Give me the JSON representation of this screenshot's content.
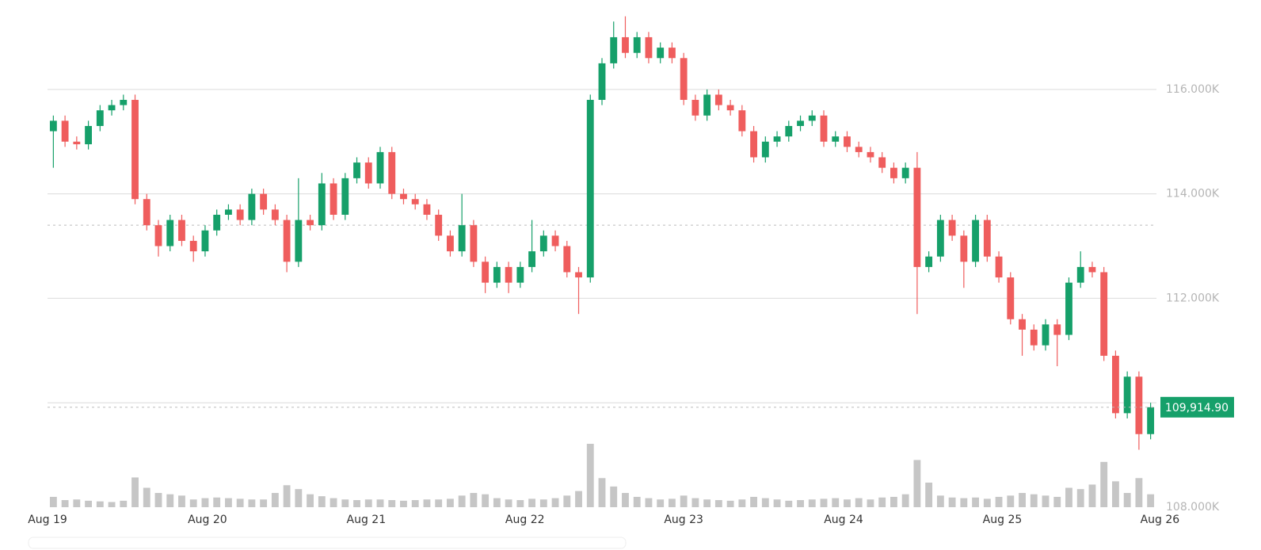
{
  "chart_data": {
    "type": "candlestick",
    "x": [
      0,
      1,
      2,
      3,
      4,
      5,
      6,
      7,
      8,
      9,
      10,
      11,
      12,
      13,
      14,
      15,
      16,
      17,
      18,
      19,
      20,
      21,
      22,
      23,
      24,
      25,
      26,
      27,
      28,
      29,
      30,
      31,
      32,
      33,
      34,
      35,
      36,
      37,
      38,
      39,
      40,
      41,
      42,
      43,
      44,
      45,
      46,
      47,
      48,
      49,
      50,
      51,
      52,
      53,
      54,
      55,
      56,
      57,
      58,
      59,
      60,
      61,
      62,
      63,
      64,
      65,
      66,
      67,
      68,
      69,
      70,
      71,
      72,
      73,
      74,
      75,
      76,
      77,
      78,
      79,
      80,
      81,
      82,
      83,
      84,
      85,
      86,
      87,
      88,
      89,
      90,
      91,
      92,
      93,
      94
    ],
    "open": [
      115200,
      115400,
      115000,
      114950,
      115300,
      115600,
      115700,
      115800,
      113900,
      113400,
      113000,
      113500,
      113100,
      112900,
      113300,
      113600,
      113700,
      113500,
      114000,
      113700,
      113500,
      112700,
      113500,
      113400,
      114200,
      113600,
      114300,
      114600,
      114200,
      114800,
      114000,
      113900,
      113800,
      113600,
      113200,
      112900,
      113400,
      112700,
      112300,
      112600,
      112300,
      112600,
      112900,
      113200,
      113000,
      112500,
      112400,
      115800,
      116500,
      117000,
      116700,
      117000,
      116600,
      116800,
      116600,
      115800,
      115500,
      115900,
      115700,
      115600,
      115200,
      114700,
      115000,
      115100,
      115300,
      115400,
      115500,
      115000,
      115100,
      114900,
      114800,
      114700,
      114500,
      114300,
      114500,
      112600,
      112800,
      113500,
      113200,
      112700,
      113500,
      112800,
      112400,
      111600,
      111400,
      111100,
      111500,
      111300,
      112300,
      112600,
      112500,
      110900,
      109800,
      110500,
      109400
    ],
    "high": [
      115500,
      115500,
      115100,
      115400,
      115700,
      115800,
      115900,
      115900,
      114000,
      113500,
      113600,
      113600,
      113200,
      113400,
      113700,
      113800,
      113800,
      114100,
      114100,
      113800,
      113600,
      114300,
      113600,
      114400,
      114300,
      114400,
      114700,
      114700,
      114900,
      114900,
      114100,
      114000,
      113900,
      113700,
      113300,
      114000,
      113500,
      112800,
      112700,
      112700,
      112700,
      113500,
      113300,
      113300,
      113100,
      112600,
      115900,
      116600,
      117300,
      117400,
      117100,
      117100,
      116900,
      116900,
      116700,
      115900,
      116000,
      116000,
      115800,
      115700,
      115300,
      115100,
      115200,
      115400,
      115500,
      115600,
      115600,
      115200,
      115200,
      115000,
      114900,
      114800,
      114600,
      114600,
      114800,
      112900,
      113600,
      113600,
      113300,
      113600,
      113600,
      112900,
      112500,
      111700,
      111500,
      111600,
      111600,
      112400,
      112900,
      112700,
      112600,
      111000,
      110600,
      110600,
      110000
    ],
    "low": [
      114500,
      114900,
      114850,
      114850,
      115200,
      115500,
      115600,
      113800,
      113300,
      112800,
      112900,
      113000,
      112700,
      112800,
      113200,
      113500,
      113400,
      113400,
      113600,
      113400,
      112500,
      112600,
      113300,
      113300,
      113500,
      113500,
      114200,
      114100,
      114100,
      113900,
      113800,
      113700,
      113500,
      113100,
      112800,
      112800,
      112600,
      112100,
      112200,
      112100,
      112200,
      112500,
      112800,
      112900,
      112400,
      111700,
      112300,
      115700,
      116400,
      116600,
      116600,
      116500,
      116500,
      116500,
      115700,
      115400,
      115400,
      115600,
      115500,
      115100,
      114600,
      114600,
      114900,
      115000,
      115200,
      115300,
      114900,
      114900,
      114800,
      114700,
      114600,
      114400,
      114200,
      114200,
      111700,
      112500,
      112700,
      113100,
      112200,
      112600,
      112700,
      112300,
      111500,
      110900,
      111000,
      111000,
      110700,
      111200,
      112200,
      112400,
      110800,
      109700,
      109700,
      109100,
      109300
    ],
    "close": [
      115400,
      115000,
      114950,
      115300,
      115600,
      115700,
      115800,
      113900,
      113400,
      113000,
      113500,
      113100,
      112900,
      113300,
      113600,
      113700,
      113500,
      114000,
      113700,
      113500,
      112700,
      113500,
      113400,
      114200,
      113600,
      114300,
      114600,
      114200,
      114800,
      114000,
      113900,
      113800,
      113600,
      113200,
      112900,
      113400,
      112700,
      112300,
      112600,
      112300,
      112600,
      112900,
      113200,
      113000,
      112500,
      112400,
      115800,
      116500,
      117000,
      116700,
      117000,
      116600,
      116800,
      116600,
      115800,
      115500,
      115900,
      115700,
      115600,
      115200,
      114700,
      115000,
      115100,
      115300,
      115400,
      115500,
      115000,
      115100,
      114900,
      114800,
      114700,
      114500,
      114300,
      114500,
      112600,
      112800,
      113500,
      113200,
      112700,
      113500,
      112800,
      112400,
      111600,
      111400,
      111100,
      111500,
      111300,
      112300,
      112600,
      112500,
      110900,
      109800,
      110500,
      109400,
      109914.9
    ],
    "volume": [
      16,
      11,
      12,
      10,
      9,
      8,
      10,
      46,
      30,
      22,
      20,
      18,
      12,
      14,
      15,
      14,
      13,
      12,
      12,
      22,
      34,
      28,
      20,
      17,
      14,
      12,
      11,
      12,
      12,
      11,
      10,
      11,
      12,
      12,
      13,
      18,
      22,
      20,
      14,
      12,
      11,
      13,
      12,
      14,
      18,
      25,
      98,
      45,
      32,
      22,
      16,
      14,
      12,
      13,
      18,
      14,
      12,
      11,
      10,
      12,
      16,
      14,
      12,
      10,
      11,
      12,
      13,
      14,
      12,
      14,
      12,
      15,
      16,
      20,
      73,
      38,
      18,
      15,
      14,
      15,
      13,
      16,
      18,
      22,
      20,
      18,
      16,
      30,
      28,
      35,
      70,
      40,
      22,
      45,
      20
    ],
    "up_color": "#16a06a",
    "down_color": "#ef5d5d",
    "volume_color": "#c6c6c6",
    "xlim": [
      -0.5,
      94.5
    ],
    "xticks": [
      {
        "value": -0.5,
        "label": "Aug 19"
      },
      {
        "value": 13.2,
        "label": "Aug 20"
      },
      {
        "value": 26.8,
        "label": "Aug 21"
      },
      {
        "value": 40.4,
        "label": "Aug 22"
      },
      {
        "value": 54.0,
        "label": "Aug 23"
      },
      {
        "value": 67.7,
        "label": "Aug 24"
      },
      {
        "value": 81.3,
        "label": "Aug 25"
      },
      {
        "value": 94.8,
        "label": "Aug 26"
      }
    ],
    "ylim": [
      108000,
      117500
    ],
    "yticks": [
      {
        "value": 108000,
        "label": "108.000K"
      },
      {
        "value": 110000,
        "label": null
      },
      {
        "value": 112000,
        "label": "112.000K"
      },
      {
        "value": 114000,
        "label": "114.000K"
      },
      {
        "value": 116000,
        "label": "116.000K"
      }
    ],
    "grid": true,
    "reference_line": 113400,
    "last_price": {
      "value": 109914.9,
      "label": "109,914.90"
    }
  }
}
